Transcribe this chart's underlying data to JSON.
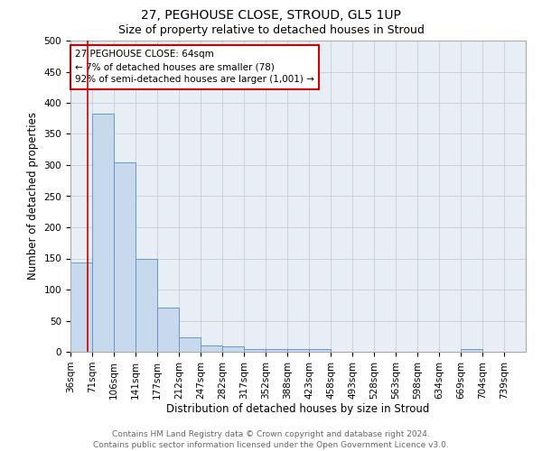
{
  "title": "27, PEGHOUSE CLOSE, STROUD, GL5 1UP",
  "subtitle": "Size of property relative to detached houses in Stroud",
  "xlabel": "Distribution of detached houses by size in Stroud",
  "ylabel": "Number of detached properties",
  "bar_edges": [
    36,
    71,
    106,
    141,
    177,
    212,
    247,
    282,
    317,
    352,
    388,
    423,
    458,
    493,
    528,
    563,
    598,
    634,
    669,
    704,
    739
  ],
  "bar_heights": [
    144,
    383,
    305,
    149,
    71,
    23,
    10,
    9,
    5,
    5,
    5,
    5,
    0,
    0,
    0,
    0,
    0,
    0,
    5,
    0,
    0
  ],
  "bar_color": "#c9d9ed",
  "bar_edge_color": "#6699cc",
  "property_line_x": 64,
  "property_line_color": "#cc0000",
  "annotation_line1": "27 PEGHOUSE CLOSE: 64sqm",
  "annotation_line2": "← 7% of detached houses are smaller (78)",
  "annotation_line3": "92% of semi-detached houses are larger (1,001) →",
  "annotation_box_color": "#cc0000",
  "ylim": [
    0,
    500
  ],
  "yticks": [
    0,
    50,
    100,
    150,
    200,
    250,
    300,
    350,
    400,
    450,
    500
  ],
  "grid_color": "#cccccc",
  "bg_color": "#e8eef5",
  "footer_line1": "Contains HM Land Registry data © Crown copyright and database right 2024.",
  "footer_line2": "Contains public sector information licensed under the Open Government Licence v3.0.",
  "title_fontsize": 10,
  "subtitle_fontsize": 9,
  "xlabel_fontsize": 8.5,
  "ylabel_fontsize": 8.5,
  "tick_fontsize": 7.5,
  "footer_fontsize": 6.5
}
